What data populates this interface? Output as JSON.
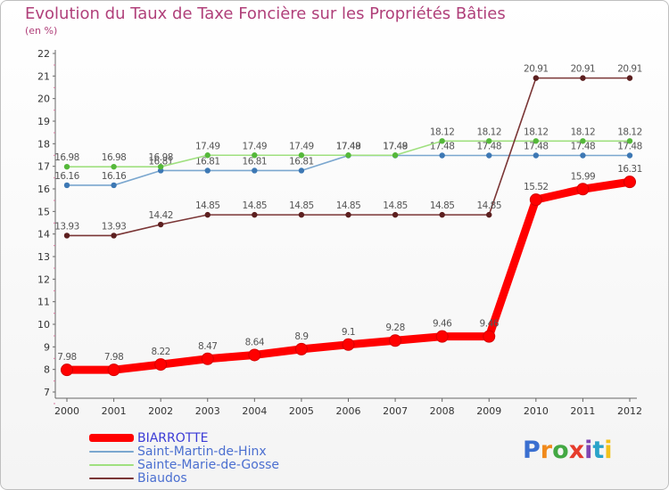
{
  "title": "Evolution du Taux de Taxe Foncière sur les Propriétés Bâties",
  "subtitle": "(en %)",
  "logo": {
    "text": "Proxiti",
    "colors": [
      "#3a6fd0",
      "#f08a1c",
      "#43a843",
      "#e63c2c",
      "#7f46b3",
      "#2aa3c9",
      "#f2c21b"
    ]
  },
  "chart_data": {
    "type": "line",
    "title": "Evolution du Taux de Taxe Foncière sur les Propriétés Bâties",
    "ylabel": "(en %)",
    "xlabel": "",
    "x": [
      "2000",
      "2001",
      "2002",
      "2003",
      "2004",
      "2005",
      "2006",
      "2007",
      "2008",
      "2009",
      "2010",
      "2011",
      "2012"
    ],
    "ylim": [
      7,
      22
    ],
    "yticks": [
      7,
      8,
      9,
      10,
      11,
      12,
      13,
      14,
      15,
      16,
      17,
      18,
      19,
      20,
      21,
      22
    ],
    "grid": false,
    "series": [
      {
        "name": "BIARROTTE",
        "color": "#ff0000",
        "marker_color": "#ff0000",
        "emphasis": true,
        "values": [
          7.98,
          7.98,
          8.22,
          8.47,
          8.64,
          8.9,
          9.1,
          9.28,
          9.46,
          9.46,
          15.52,
          15.99,
          16.31
        ],
        "labels": [
          "7.98",
          "7.98",
          "8.22",
          "8.47",
          "8.64",
          "8.9",
          "9.1",
          "9.28",
          "9.46",
          "9.46",
          "15.52",
          "15.99",
          "16.31"
        ]
      },
      {
        "name": "Saint-Martin-de-Hinx",
        "color": "#7ba7cf",
        "marker_color": "#3d78b4",
        "emphasis": false,
        "values": [
          16.16,
          16.16,
          16.81,
          16.81,
          16.81,
          16.81,
          17.48,
          17.48,
          17.48,
          17.48,
          17.48,
          17.48,
          17.48
        ],
        "labels": [
          "16.16",
          "16.16",
          "16.81",
          "16.81",
          "16.81",
          "16.81",
          "17.48",
          "17.48",
          "17.48",
          "17.48",
          "17.48",
          "17.48",
          "17.48"
        ]
      },
      {
        "name": "Sainte-Marie-de-Gosse",
        "color": "#9fe07f",
        "marker_color": "#55b83a",
        "emphasis": false,
        "values": [
          16.98,
          16.98,
          16.98,
          17.49,
          17.49,
          17.49,
          17.49,
          17.49,
          18.12,
          18.12,
          18.12,
          18.12,
          18.12
        ],
        "labels": [
          "16.98",
          "16.98",
          "16.98",
          "17.49",
          "17.49",
          "17.49",
          "17.49",
          "17.49",
          "18.12",
          "18.12",
          "18.12",
          "18.12",
          "18.12"
        ]
      },
      {
        "name": "Biaudos",
        "color": "#7a3535",
        "marker_color": "#5c1f1f",
        "emphasis": false,
        "values": [
          13.93,
          13.93,
          14.42,
          14.85,
          14.85,
          14.85,
          14.85,
          14.85,
          14.85,
          14.85,
          20.91,
          20.91,
          20.91
        ],
        "labels": [
          "13.93",
          "13.93",
          "14.42",
          "14.85",
          "14.85",
          "14.85",
          "14.85",
          "14.85",
          "14.85",
          "14.85",
          "20.91",
          "20.91",
          "20.91"
        ]
      }
    ],
    "legend": {
      "position": "bottom-left",
      "entries": [
        "BIARROTTE",
        "Saint-Martin-de-Hinx",
        "Sainte-Marie-de-Gosse",
        "Biaudos"
      ]
    }
  }
}
